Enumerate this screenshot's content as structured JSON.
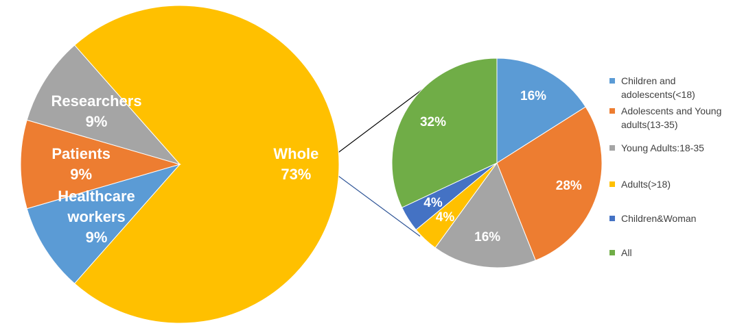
{
  "chart_data": [
    {
      "type": "pie",
      "categories": [
        "Whole",
        "Healthcare workers",
        "Patients",
        "Researchers"
      ],
      "values": [
        73,
        9,
        9,
        9
      ],
      "value_labels": [
        "73%",
        "9%",
        "9%",
        "9%"
      ],
      "colors": [
        "#ffc000",
        "#5b9bd5",
        "#ed7d31",
        "#a5a5a5"
      ]
    },
    {
      "type": "pie",
      "categories": [
        "Children and adolescents(<18)",
        "Adolescents and Young adults(13-35)",
        "Young Adults:18-35",
        "Adults(>18)",
        "Children&Woman",
        "All"
      ],
      "values": [
        16,
        28,
        16,
        4,
        4,
        32
      ],
      "value_labels": [
        "16%",
        "28%",
        "16%",
        "4%",
        "4%",
        "32%"
      ],
      "colors": [
        "#5b9bd5",
        "#ed7d31",
        "#a5a5a5",
        "#ffc000",
        "#4472c4",
        "#70ad47"
      ],
      "legend": "right"
    }
  ]
}
